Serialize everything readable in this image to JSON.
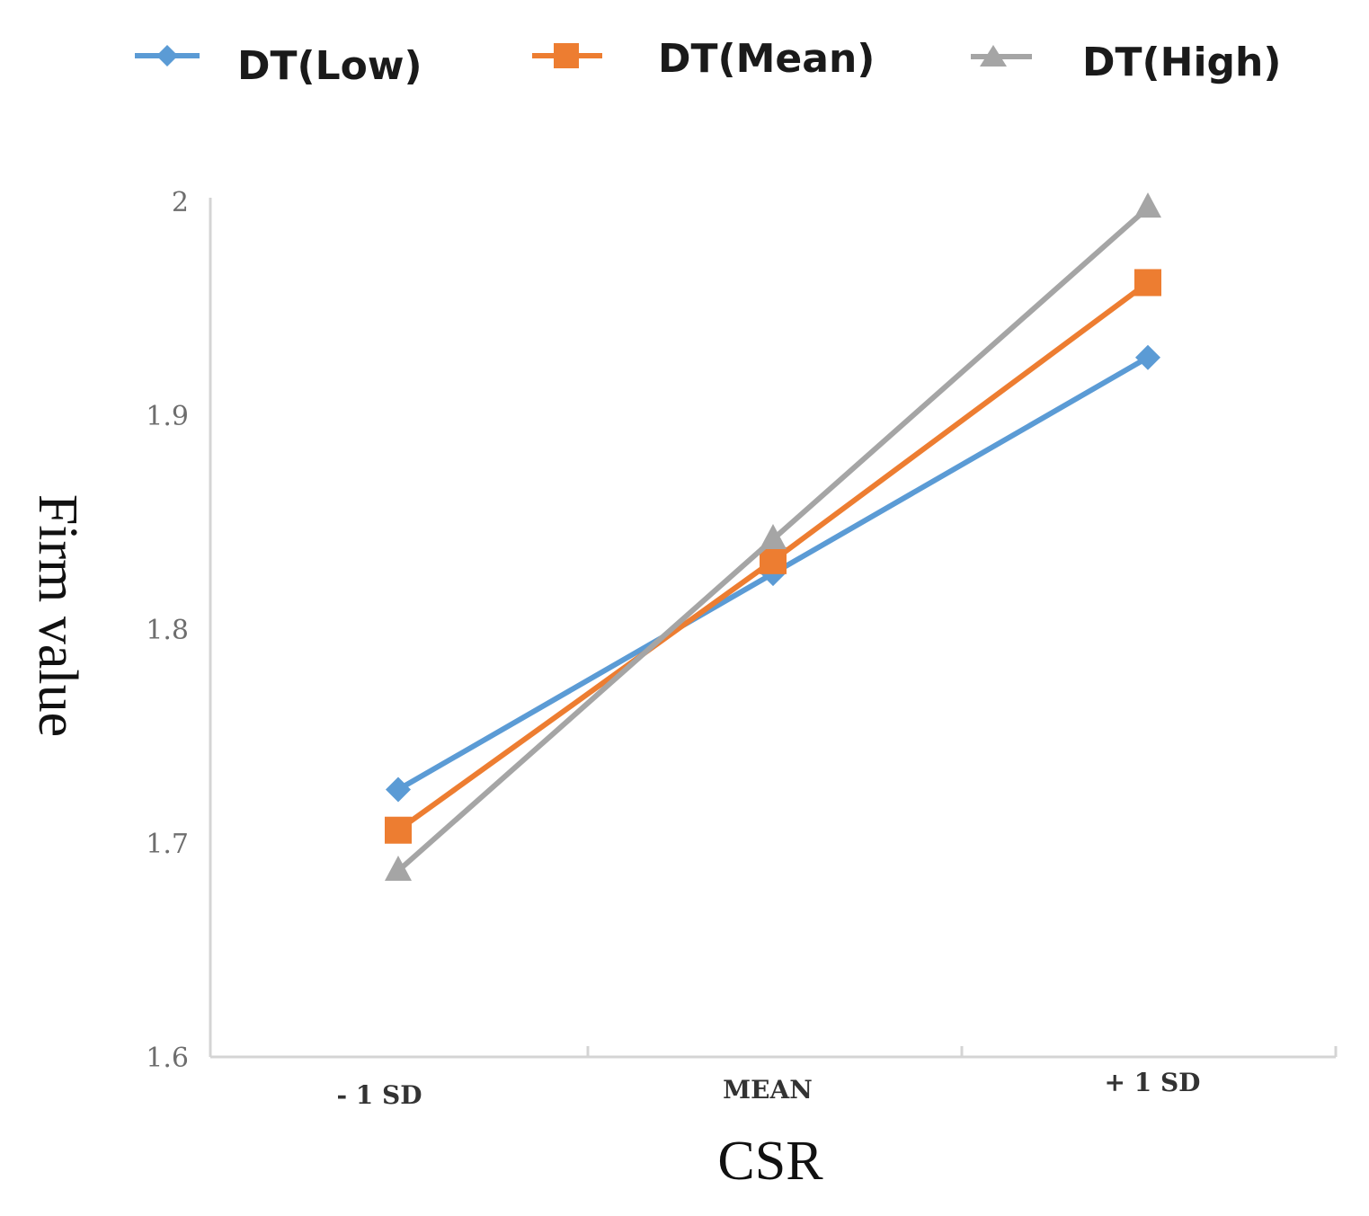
{
  "chart_data": {
    "type": "line",
    "title": "",
    "xlabel": "CSR",
    "ylabel": "Firm value",
    "categories": [
      "- 1 SD",
      "MEAN",
      "+ 1 SD"
    ],
    "yticks": [
      "1.6",
      "1.7",
      "1.8",
      "1.9",
      "2"
    ],
    "ytick_values": [
      1.6,
      1.7,
      1.8,
      1.9,
      2.0
    ],
    "ylim": [
      1.6,
      2.0
    ],
    "grid": false,
    "legend_position": "top",
    "series": [
      {
        "name": "DT(Low)",
        "values": [
          1.725,
          1.826,
          1.927
        ],
        "color": "#5b9bd5",
        "marker": "diamond"
      },
      {
        "name": "DT(Mean)",
        "values": [
          1.706,
          1.832,
          1.962
        ],
        "color": "#ed7d31",
        "marker": "square"
      },
      {
        "name": "DT(High)",
        "values": [
          1.687,
          1.842,
          1.997
        ],
        "color": "#a5a5a5",
        "marker": "triangle"
      }
    ]
  }
}
